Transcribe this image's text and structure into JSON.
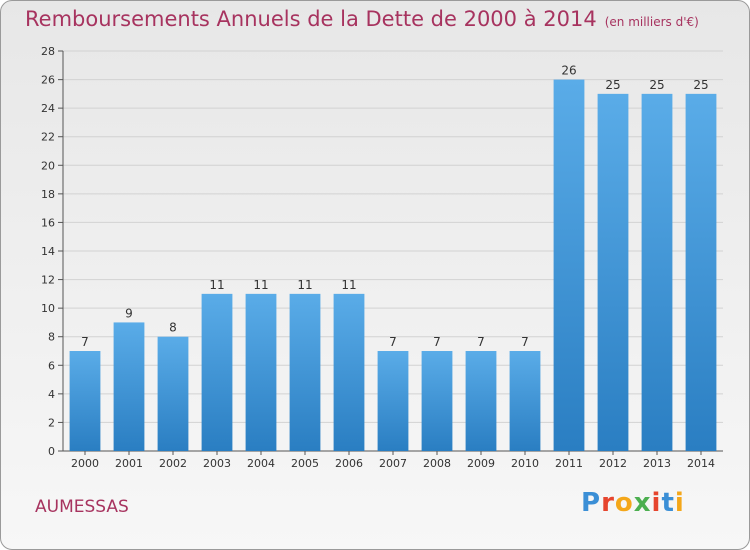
{
  "chart_data": {
    "type": "bar",
    "title": "Remboursements Annuels de la Dette de 2000 à 2014",
    "subtitle": "(en milliers d'€)",
    "categories": [
      "2000",
      "2001",
      "2002",
      "2003",
      "2004",
      "2005",
      "2006",
      "2007",
      "2008",
      "2009",
      "2010",
      "2011",
      "2012",
      "2013",
      "2014"
    ],
    "values": [
      7,
      9,
      8,
      11,
      11,
      11,
      11,
      7,
      7,
      7,
      7,
      26,
      25,
      25,
      25
    ],
    "xlabel": "",
    "ylabel": "",
    "ylim": [
      0,
      28
    ],
    "yticks": [
      0,
      2,
      4,
      6,
      8,
      10,
      12,
      14,
      16,
      18,
      20,
      22,
      24,
      26,
      28
    ],
    "colors": {
      "bar_top": "#5aace8",
      "bar_bottom": "#2a7ec2",
      "title": "#a7335f"
    }
  },
  "location": "AUMESSAS",
  "logo": {
    "letters": [
      "P",
      "r",
      "o",
      "x",
      "i",
      "t",
      "i"
    ]
  }
}
